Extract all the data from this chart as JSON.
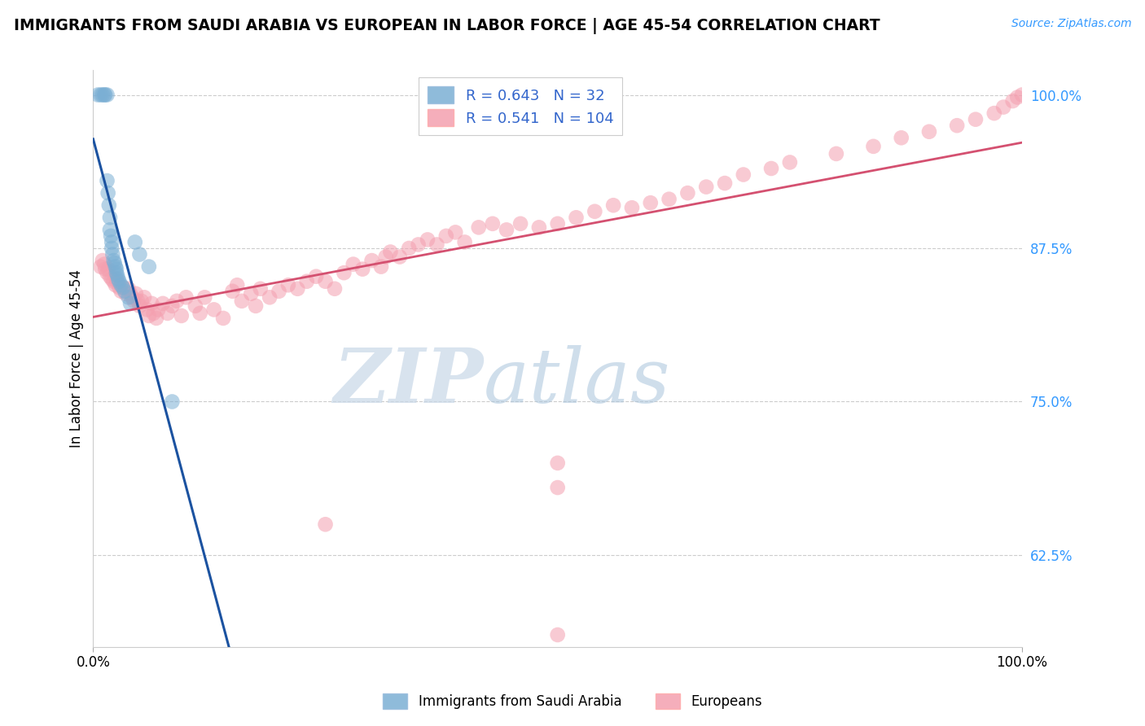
{
  "title": "IMMIGRANTS FROM SAUDI ARABIA VS EUROPEAN IN LABOR FORCE | AGE 45-54 CORRELATION CHART",
  "source": "Source: ZipAtlas.com",
  "ylabel": "In Labor Force | Age 45-54",
  "legend_blue_R": "0.643",
  "legend_blue_N": "32",
  "legend_pink_R": "0.541",
  "legend_pink_N": "104",
  "legend_label_blue": "Immigrants from Saudi Arabia",
  "legend_label_pink": "Europeans",
  "watermark_zip": "ZIP",
  "watermark_atlas": "atlas",
  "blue_color": "#7BAFD4",
  "pink_color": "#F4A0B0",
  "blue_line_color": "#1B52A0",
  "pink_line_color": "#D45070",
  "background_color": "#FFFFFF",
  "grid_color": "#CCCCCC",
  "ytick_values": [
    0.625,
    0.75,
    0.875,
    1.0
  ],
  "ytick_labels": [
    "62.5%",
    "75.0%",
    "87.5%",
    "100.0%"
  ],
  "xmin": 0.0,
  "xmax": 1.0,
  "ymin": 0.55,
  "ymax": 1.02,
  "blue_x": [
    0.005,
    0.008,
    0.01,
    0.012,
    0.013,
    0.015,
    0.015,
    0.016,
    0.017,
    0.018,
    0.018,
    0.019,
    0.02,
    0.02,
    0.021,
    0.022,
    0.023,
    0.024,
    0.025,
    0.025,
    0.026,
    0.027,
    0.028,
    0.03,
    0.032,
    0.034,
    0.038,
    0.04,
    0.045,
    0.05,
    0.06,
    0.085
  ],
  "blue_y": [
    1.0,
    1.0,
    1.0,
    1.0,
    1.0,
    1.0,
    0.93,
    0.92,
    0.91,
    0.9,
    0.89,
    0.885,
    0.88,
    0.875,
    0.87,
    0.865,
    0.863,
    0.86,
    0.858,
    0.855,
    0.853,
    0.85,
    0.848,
    0.845,
    0.843,
    0.84,
    0.835,
    0.83,
    0.88,
    0.87,
    0.86,
    0.75
  ],
  "pink_x": [
    0.008,
    0.01,
    0.012,
    0.013,
    0.015,
    0.016,
    0.018,
    0.02,
    0.022,
    0.024,
    0.025,
    0.026,
    0.028,
    0.03,
    0.032,
    0.035,
    0.038,
    0.04,
    0.042,
    0.044,
    0.046,
    0.048,
    0.05,
    0.052,
    0.055,
    0.058,
    0.06,
    0.063,
    0.065,
    0.068,
    0.07,
    0.075,
    0.08,
    0.085,
    0.09,
    0.095,
    0.1,
    0.11,
    0.115,
    0.12,
    0.13,
    0.14,
    0.15,
    0.155,
    0.16,
    0.17,
    0.175,
    0.18,
    0.19,
    0.2,
    0.21,
    0.22,
    0.23,
    0.24,
    0.25,
    0.26,
    0.27,
    0.28,
    0.29,
    0.3,
    0.31,
    0.315,
    0.32,
    0.33,
    0.34,
    0.35,
    0.36,
    0.37,
    0.38,
    0.39,
    0.4,
    0.415,
    0.43,
    0.445,
    0.46,
    0.48,
    0.5,
    0.52,
    0.54,
    0.56,
    0.58,
    0.6,
    0.62,
    0.64,
    0.66,
    0.68,
    0.7,
    0.73,
    0.75,
    0.8,
    0.84,
    0.87,
    0.9,
    0.93,
    0.95,
    0.97,
    0.98,
    0.99,
    0.995,
    1.0,
    0.5,
    0.5,
    0.5,
    0.25
  ],
  "pink_y": [
    0.86,
    0.865,
    0.862,
    0.858,
    0.855,
    0.858,
    0.852,
    0.85,
    0.848,
    0.845,
    0.85,
    0.848,
    0.843,
    0.84,
    0.843,
    0.838,
    0.842,
    0.838,
    0.835,
    0.832,
    0.838,
    0.832,
    0.828,
    0.832,
    0.835,
    0.825,
    0.82,
    0.83,
    0.822,
    0.818,
    0.825,
    0.83,
    0.822,
    0.828,
    0.832,
    0.82,
    0.835,
    0.828,
    0.822,
    0.835,
    0.825,
    0.818,
    0.84,
    0.845,
    0.832,
    0.838,
    0.828,
    0.842,
    0.835,
    0.84,
    0.845,
    0.842,
    0.848,
    0.852,
    0.848,
    0.842,
    0.855,
    0.862,
    0.858,
    0.865,
    0.86,
    0.868,
    0.872,
    0.868,
    0.875,
    0.878,
    0.882,
    0.878,
    0.885,
    0.888,
    0.88,
    0.892,
    0.895,
    0.89,
    0.895,
    0.892,
    0.895,
    0.9,
    0.905,
    0.91,
    0.908,
    0.912,
    0.915,
    0.92,
    0.925,
    0.928,
    0.935,
    0.94,
    0.945,
    0.952,
    0.958,
    0.965,
    0.97,
    0.975,
    0.98,
    0.985,
    0.99,
    0.995,
    0.998,
    1.0,
    0.7,
    0.68,
    0.56,
    0.65
  ]
}
